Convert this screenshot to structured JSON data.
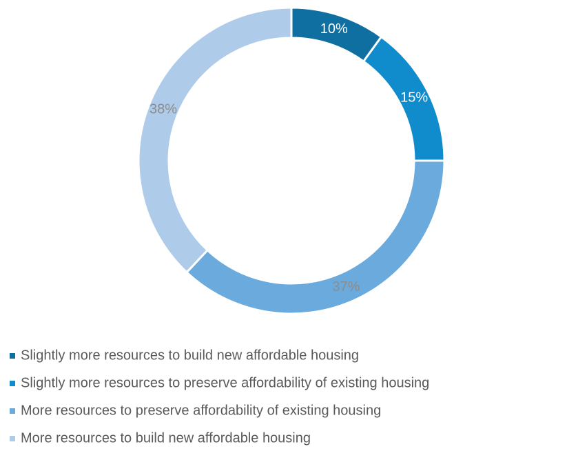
{
  "chart_data": {
    "type": "donut",
    "categories": [
      "Slightly more resources to build new affordable housing",
      "Slightly more resources to preserve affordability of existing housing",
      "More resources to preserve affordability of existing housing",
      "More resources to build new affordable housing"
    ],
    "values": [
      10,
      15,
      37,
      38
    ],
    "value_labels": [
      "10%",
      "15%",
      "37%",
      "38%"
    ],
    "colors": [
      "#0e6fa0",
      "#108bcc",
      "#6aaadd",
      "#afcbea"
    ],
    "legend": "bottom-left"
  }
}
